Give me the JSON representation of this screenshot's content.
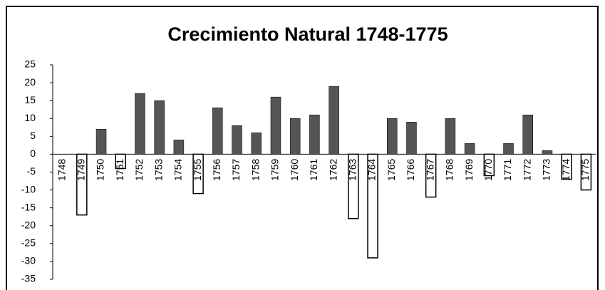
{
  "chart_data": {
    "type": "bar",
    "title": "Crecimiento Natural 1748-1775",
    "categories": [
      "1748",
      "1749",
      "1750",
      "1751",
      "1752",
      "1753",
      "1754",
      "1755",
      "1756",
      "1757",
      "1758",
      "1759",
      "1760",
      "1761",
      "1762",
      "1763",
      "1764",
      "1765",
      "1766",
      "1767",
      "1768",
      "1769",
      "1770",
      "1771",
      "1772",
      "1773",
      "1774",
      "1775"
    ],
    "values": [
      0,
      -17,
      7,
      -4,
      17,
      15,
      4,
      -11,
      13,
      8,
      6,
      16,
      10,
      11,
      19,
      -18,
      -29,
      10,
      9,
      -12,
      10,
      3,
      -6,
      3,
      11,
      1,
      -7,
      -10
    ],
    "color": "#555555",
    "negative_color": "#ffffff",
    "ylim": [
      -35,
      25
    ],
    "yticks": [
      -35,
      -30,
      -25,
      -20,
      -15,
      -10,
      -5,
      0,
      5,
      10,
      15,
      20,
      25
    ]
  }
}
